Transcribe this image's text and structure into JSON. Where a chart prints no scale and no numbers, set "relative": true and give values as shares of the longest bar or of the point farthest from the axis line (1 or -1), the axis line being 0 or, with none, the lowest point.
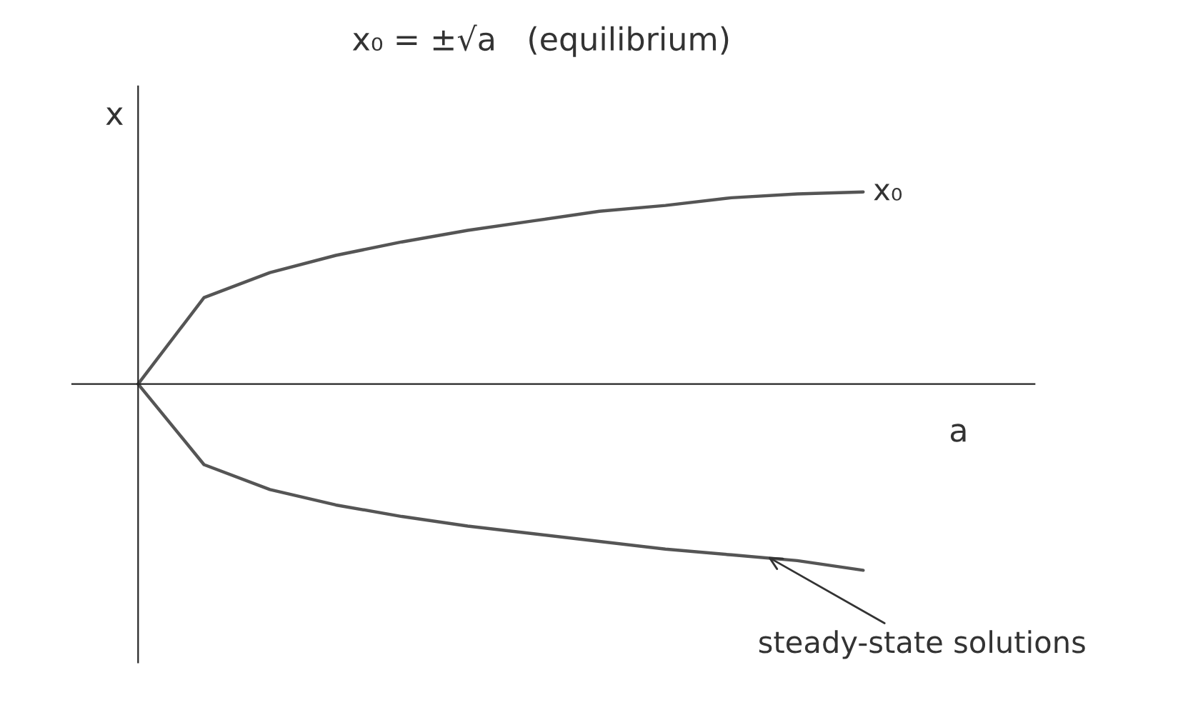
{
  "chart_data": {
    "type": "line",
    "title": "x₀ = ±√a   (equilibrium)",
    "xlabel": "a",
    "ylabel": "x",
    "relative": true,
    "categories": [
      null,
      null,
      null,
      null,
      null,
      null,
      null,
      null,
      null,
      null,
      null,
      null
    ],
    "series": [
      {
        "name": "x₀",
        "color": "#555555",
        "values": [
          0,
          0.45,
          0.58,
          0.67,
          0.74,
          0.8,
          0.85,
          0.9,
          0.93,
          0.97,
          0.99,
          1
        ]
      },
      {
        "color": "#555555",
        "values": [
          0,
          -0.42,
          -0.55,
          -0.63,
          -0.69,
          -0.74,
          -0.78,
          -0.82,
          -0.86,
          -0.89,
          -0.92,
          -0.97
        ]
      }
    ],
    "annotations": [
      "steady-state solutions"
    ],
    "marker": "none",
    "line_style": "solid"
  }
}
